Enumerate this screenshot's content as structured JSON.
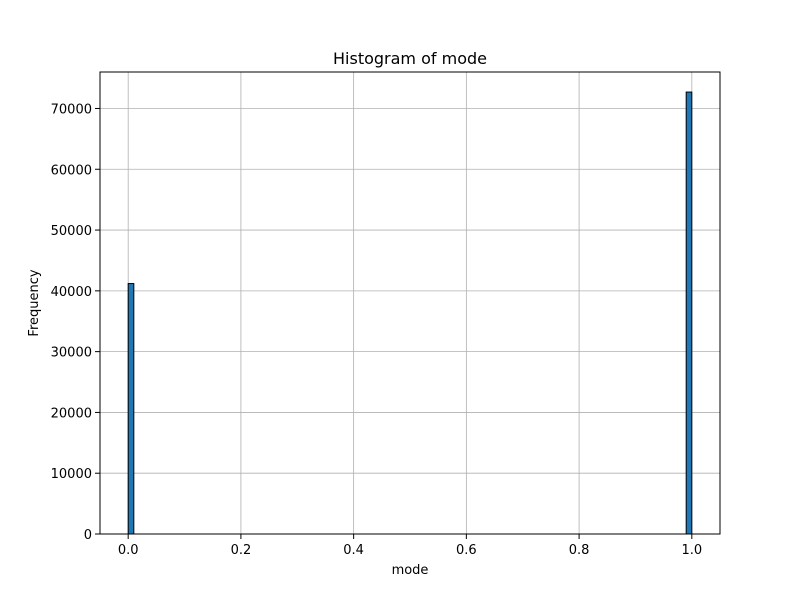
{
  "chart_data": {
    "type": "bar",
    "title": "Histogram of mode",
    "xlabel": "mode",
    "ylabel": "Frequency",
    "xlim": [
      -0.05,
      1.05
    ],
    "ylim": [
      0,
      76000
    ],
    "x_ticks": [
      0.0,
      0.2,
      0.4,
      0.6,
      0.8,
      1.0
    ],
    "x_tick_labels": [
      "0.0",
      "0.2",
      "0.4",
      "0.6",
      "0.8",
      "1.0"
    ],
    "y_ticks": [
      0,
      10000,
      20000,
      30000,
      40000,
      50000,
      60000,
      70000
    ],
    "y_tick_labels": [
      "0",
      "10000",
      "20000",
      "30000",
      "40000",
      "50000",
      "60000",
      "70000"
    ],
    "bins": [
      {
        "x_start": 0.0,
        "x_end": 0.01,
        "value": 41200
      },
      {
        "x_start": 0.99,
        "x_end": 1.0,
        "value": 72700
      }
    ],
    "grid": true,
    "bar_color": "#1f77b4",
    "bar_edge_color": "#000000"
  }
}
